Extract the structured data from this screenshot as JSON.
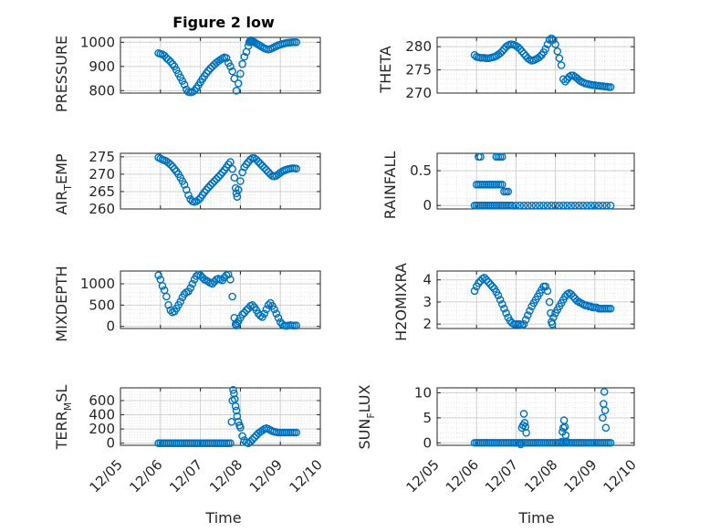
{
  "figure": {
    "title": "Figure 2 low",
    "xlabel": "Time",
    "x_tick_labels": [
      "12/05",
      "12/06",
      "12/07",
      "12/08",
      "12/09",
      "12/10"
    ],
    "marker_color": "#0072bd",
    "grid_color": "#d9d9d9",
    "axis_color": "#262626",
    "time_range": [
      "2017-12-05",
      "2017-12-10"
    ]
  },
  "chart_data": [
    {
      "type": "scatter",
      "title": "Figure 2 low",
      "ylabel": "PRESSURE",
      "ylim": [
        790,
        1020
      ],
      "yticks": [
        800,
        900,
        1000
      ],
      "grid": true,
      "x_days": [
        0.95,
        1.0,
        1.05,
        1.1,
        1.15,
        1.2,
        1.25,
        1.3,
        1.35,
        1.4,
        1.45,
        1.5,
        1.55,
        1.6,
        1.65,
        1.7,
        1.75,
        1.8,
        1.85,
        1.9,
        1.95,
        2.0,
        2.05,
        2.1,
        2.15,
        2.2,
        2.25,
        2.3,
        2.35,
        2.4,
        2.45,
        2.5,
        2.55,
        2.6,
        2.65,
        2.7,
        2.75,
        2.8,
        2.85,
        2.9,
        2.95,
        3.0,
        3.05,
        3.1,
        3.15,
        3.2,
        3.22,
        3.24,
        3.26,
        3.28,
        3.3,
        3.32,
        3.35,
        3.4,
        3.45,
        3.5,
        3.55,
        3.6,
        3.65,
        3.7,
        3.75,
        3.8,
        3.85,
        3.9,
        3.95,
        4.0,
        4.05,
        4.1,
        4.15,
        4.2,
        4.25,
        4.3,
        4.35,
        4.4
      ],
      "values": [
        955,
        952,
        950,
        945,
        935,
        928,
        920,
        910,
        900,
        885,
        870,
        855,
        840,
        825,
        805,
        795,
        793,
        795,
        800,
        810,
        822,
        835,
        848,
        860,
        872,
        882,
        892,
        900,
        908,
        916,
        922,
        928,
        933,
        938,
        935,
        915,
        900,
        880,
        850,
        800,
        830,
        870,
        910,
        940,
        960,
        985,
        1000,
        1005,
        1008,
        1008,
        1005,
        1003,
        1000,
        995,
        990,
        985,
        980,
        975,
        972,
        970,
        972,
        976,
        980,
        984,
        988,
        990,
        993,
        995,
        997,
        998,
        999,
        1000,
        1000,
        1000
      ]
    },
    {
      "type": "scatter",
      "ylabel": "THETA",
      "ylim": [
        270,
        282
      ],
      "yticks": [
        270,
        275,
        280
      ],
      "grid": true,
      "x_days": [
        0.95,
        1.0,
        1.05,
        1.1,
        1.15,
        1.2,
        1.25,
        1.3,
        1.35,
        1.4,
        1.45,
        1.5,
        1.55,
        1.6,
        1.65,
        1.7,
        1.75,
        1.8,
        1.85,
        1.9,
        1.95,
        2.0,
        2.05,
        2.1,
        2.15,
        2.2,
        2.25,
        2.3,
        2.35,
        2.4,
        2.45,
        2.5,
        2.55,
        2.6,
        2.65,
        2.7,
        2.75,
        2.8,
        2.85,
        2.9,
        2.95,
        3.0,
        3.05,
        3.1,
        3.15,
        3.2,
        3.25,
        3.3,
        3.35,
        3.4,
        3.45,
        3.5,
        3.55,
        3.6,
        3.65,
        3.7,
        3.75,
        3.8,
        3.85,
        3.9,
        3.95,
        4.0,
        4.05,
        4.1,
        4.15,
        4.2,
        4.25,
        4.3,
        4.35,
        4.4
      ],
      "values": [
        278.2,
        277.8,
        277.7,
        277.6,
        277.6,
        277.6,
        277.5,
        277.5,
        277.6,
        277.7,
        277.8,
        278.0,
        278.3,
        278.6,
        279.0,
        279.5,
        280.0,
        280.3,
        280.5,
        280.5,
        280.4,
        280.2,
        279.9,
        279.5,
        279.0,
        278.5,
        278.0,
        277.5,
        277.2,
        277.0,
        277.1,
        277.3,
        277.5,
        277.8,
        278.2,
        278.8,
        279.5,
        280.5,
        281.5,
        281.8,
        281.5,
        280.5,
        279.0,
        277.5,
        276.0,
        273.0,
        272.5,
        273.0,
        273.5,
        273.8,
        273.8,
        273.5,
        273.2,
        272.8,
        272.5,
        272.3,
        272.1,
        272.0,
        271.9,
        271.8,
        271.7,
        271.7,
        271.6,
        271.6,
        271.5,
        271.5,
        271.4,
        271.4,
        271.3,
        271.3
      ]
    },
    {
      "type": "scatter",
      "ylabel": "AIR_TEMP",
      "ylim": [
        260,
        276
      ],
      "yticks": [
        260,
        265,
        270,
        275
      ],
      "grid": true,
      "x_days": [
        0.95,
        1.0,
        1.05,
        1.1,
        1.15,
        1.2,
        1.25,
        1.3,
        1.35,
        1.4,
        1.45,
        1.5,
        1.55,
        1.6,
        1.65,
        1.7,
        1.75,
        1.8,
        1.85,
        1.9,
        1.95,
        2.0,
        2.05,
        2.1,
        2.15,
        2.2,
        2.25,
        2.3,
        2.35,
        2.4,
        2.45,
        2.5,
        2.55,
        2.6,
        2.65,
        2.7,
        2.75,
        2.8,
        2.85,
        2.88,
        2.9,
        2.92,
        2.95,
        3.0,
        3.05,
        3.1,
        3.15,
        3.2,
        3.25,
        3.3,
        3.35,
        3.4,
        3.45,
        3.5,
        3.55,
        3.6,
        3.65,
        3.7,
        3.75,
        3.8,
        3.85,
        3.9,
        3.95,
        4.0,
        4.05,
        4.1,
        4.15,
        4.2,
        4.25,
        4.3,
        4.35,
        4.4
      ],
      "values": [
        274.8,
        274.5,
        274.2,
        274.0,
        273.7,
        273.3,
        272.8,
        272.2,
        271.5,
        270.8,
        270.0,
        269.0,
        268.0,
        267.0,
        265.5,
        264.0,
        262.8,
        262.2,
        262.0,
        262.2,
        262.6,
        263.2,
        264.0,
        264.8,
        265.5,
        266.2,
        266.8,
        267.4,
        268.0,
        268.6,
        269.2,
        269.8,
        270.5,
        271.2,
        272.0,
        272.8,
        273.5,
        271.5,
        269.0,
        266.0,
        264.5,
        263.5,
        265.5,
        268.0,
        270.5,
        272.0,
        272.8,
        273.5,
        274.2,
        274.6,
        274.6,
        274.2,
        273.6,
        273.0,
        272.4,
        271.8,
        271.2,
        270.6,
        270.0,
        269.5,
        269.4,
        269.6,
        270.0,
        270.4,
        270.8,
        271.1,
        271.3,
        271.5,
        271.6,
        271.7,
        271.7,
        271.6
      ]
    },
    {
      "type": "scatter",
      "ylabel": "RAINFALL",
      "ylim": [
        -0.05,
        0.75
      ],
      "yticks": [
        0,
        0.5
      ],
      "grid": true,
      "x_days": [
        0.95,
        1.0,
        1.05,
        1.1,
        1.15,
        1.2,
        1.25,
        1.3,
        1.35,
        1.4,
        1.45,
        1.5,
        1.55,
        1.6,
        1.65,
        1.7,
        1.75,
        1.8,
        1.0,
        1.05,
        1.1,
        1.15,
        1.2,
        1.25,
        1.3,
        1.35,
        1.4,
        1.45,
        1.5,
        1.55,
        1.6,
        1.65,
        1.7,
        1.75,
        1.8,
        1.05,
        1.1,
        1.5,
        1.55,
        1.6,
        1.65,
        1.85,
        1.9,
        2.0,
        2.1,
        2.2,
        2.3,
        2.4,
        2.5,
        2.6,
        2.7,
        2.8,
        2.9,
        3.0,
        3.1,
        3.2,
        3.3,
        3.4,
        3.5,
        3.6,
        3.7,
        3.8,
        3.9,
        4.0,
        4.1,
        4.2,
        4.3,
        4.4
      ],
      "values": [
        0.0,
        0.0,
        0.0,
        0.0,
        0.0,
        0.0,
        0.0,
        0.0,
        0.0,
        0.0,
        0.0,
        0.0,
        0.0,
        0.0,
        0.0,
        0.0,
        0.0,
        0.0,
        0.3,
        0.3,
        0.3,
        0.3,
        0.3,
        0.3,
        0.3,
        0.3,
        0.3,
        0.3,
        0.3,
        0.3,
        0.3,
        0.3,
        0.2,
        0.2,
        0.2,
        0.7,
        0.7,
        0.7,
        0.7,
        0.7,
        0.7,
        0.0,
        0.0,
        0.0,
        0.0,
        0.0,
        0.0,
        0.0,
        0.0,
        0.0,
        0.0,
        0.0,
        0.0,
        0.0,
        0.0,
        0.0,
        0.0,
        0.0,
        0.0,
        0.0,
        0.0,
        0.0,
        0.0,
        0.0,
        0.0,
        0.0,
        0.0,
        0.0
      ]
    },
    {
      "type": "scatter",
      "ylabel": "MIXDEPTH",
      "ylim": [
        -50,
        1300
      ],
      "yticks": [
        0,
        500,
        1000
      ],
      "grid": true,
      "x_days": [
        0.95,
        1.0,
        1.05,
        1.1,
        1.15,
        1.2,
        1.25,
        1.3,
        1.35,
        1.4,
        1.45,
        1.5,
        1.55,
        1.6,
        1.65,
        1.7,
        1.75,
        1.8,
        1.85,
        1.9,
        1.95,
        2.0,
        2.05,
        2.1,
        2.15,
        2.2,
        2.25,
        2.3,
        2.35,
        2.4,
        2.45,
        2.5,
        2.55,
        2.6,
        2.65,
        2.7,
        2.75,
        2.8,
        2.85,
        2.88,
        2.9,
        2.92,
        2.95,
        3.0,
        3.05,
        3.1,
        3.15,
        3.2,
        3.25,
        3.3,
        3.35,
        3.4,
        3.45,
        3.5,
        3.55,
        3.6,
        3.65,
        3.7,
        3.75,
        3.8,
        3.85,
        3.9,
        3.95,
        4.0,
        4.05,
        4.1,
        4.15,
        4.2,
        4.25,
        4.3,
        4.35,
        4.4
      ],
      "values": [
        1200,
        1100,
        950,
        850,
        700,
        500,
        380,
        330,
        350,
        420,
        500,
        580,
        680,
        760,
        800,
        820,
        900,
        1000,
        1100,
        1180,
        1220,
        1200,
        1150,
        1100,
        1080,
        1050,
        1020,
        1000,
        1050,
        1100,
        1120,
        1100,
        1080,
        1150,
        1200,
        1220,
        1100,
        700,
        200,
        50,
        20,
        80,
        120,
        200,
        280,
        320,
        380,
        420,
        480,
        500,
        450,
        380,
        300,
        250,
        220,
        300,
        400,
        500,
        550,
        480,
        400,
        300,
        200,
        100,
        50,
        20,
        10,
        20,
        30,
        20,
        20,
        20
      ]
    },
    {
      "type": "scatter",
      "ylabel": "H2OMIXRA",
      "ylim": [
        1.8,
        4.4
      ],
      "yticks": [
        2,
        3,
        4
      ],
      "grid": true,
      "x_days": [
        0.95,
        1.0,
        1.05,
        1.1,
        1.15,
        1.2,
        1.25,
        1.3,
        1.35,
        1.4,
        1.45,
        1.5,
        1.55,
        1.6,
        1.65,
        1.7,
        1.75,
        1.8,
        1.85,
        1.9,
        1.95,
        2.0,
        2.05,
        2.1,
        2.15,
        2.2,
        2.25,
        2.3,
        2.35,
        2.4,
        2.45,
        2.5,
        2.55,
        2.6,
        2.65,
        2.7,
        2.75,
        2.8,
        2.85,
        2.88,
        2.9,
        2.92,
        2.95,
        3.0,
        3.05,
        3.1,
        3.15,
        3.2,
        3.25,
        3.3,
        3.35,
        3.4,
        3.45,
        3.5,
        3.55,
        3.6,
        3.65,
        3.7,
        3.75,
        3.8,
        3.85,
        3.9,
        3.95,
        4.0,
        4.05,
        4.1,
        4.15,
        4.2,
        4.25,
        4.3,
        4.35,
        4.4
      ],
      "values": [
        3.5,
        3.7,
        3.85,
        3.95,
        4.05,
        4.1,
        4.0,
        3.9,
        3.8,
        3.7,
        3.6,
        3.45,
        3.3,
        3.1,
        2.9,
        2.7,
        2.5,
        2.3,
        2.15,
        2.05,
        2.0,
        2.0,
        2.0,
        2.0,
        1.95,
        2.0,
        2.2,
        2.4,
        2.6,
        2.8,
        2.95,
        3.1,
        3.25,
        3.4,
        3.55,
        3.7,
        3.7,
        3.5,
        3.0,
        2.5,
        2.1,
        2.0,
        2.3,
        2.5,
        2.65,
        2.8,
        2.95,
        3.1,
        3.25,
        3.35,
        3.4,
        3.35,
        3.25,
        3.15,
        3.05,
        3.0,
        2.95,
        2.9,
        2.85,
        2.85,
        2.8,
        2.8,
        2.75,
        2.75,
        2.75,
        2.7,
        2.7,
        2.7,
        2.7,
        2.7,
        2.7,
        2.7
      ]
    },
    {
      "type": "scatter",
      "ylabel": "TERR_MSL",
      "ylim": [
        -30,
        780
      ],
      "yticks": [
        0,
        200,
        400,
        600
      ],
      "grid": true,
      "x_days": [
        0.95,
        1.0,
        1.05,
        1.1,
        1.15,
        1.2,
        1.25,
        1.3,
        1.35,
        1.4,
        1.45,
        1.5,
        1.55,
        1.6,
        1.65,
        1.7,
        1.75,
        1.8,
        1.85,
        1.9,
        1.95,
        2.0,
        2.05,
        2.1,
        2.15,
        2.2,
        2.25,
        2.3,
        2.35,
        2.4,
        2.45,
        2.5,
        2.55,
        2.6,
        2.65,
        2.7,
        2.75,
        2.78,
        2.8,
        2.82,
        2.84,
        2.86,
        2.88,
        2.9,
        2.92,
        2.95,
        2.98,
        3.0,
        3.05,
        3.1,
        3.15,
        3.2,
        3.25,
        3.3,
        3.35,
        3.4,
        3.45,
        3.5,
        3.55,
        3.6,
        3.65,
        3.7,
        3.75,
        3.8,
        3.85,
        3.9,
        3.95,
        4.0,
        4.05,
        4.1,
        4.15,
        4.2,
        4.25,
        4.3,
        4.35,
        4.4
      ],
      "values": [
        0,
        0,
        0,
        0,
        0,
        0,
        0,
        0,
        0,
        0,
        0,
        0,
        0,
        0,
        0,
        0,
        0,
        0,
        0,
        0,
        0,
        0,
        0,
        0,
        0,
        0,
        0,
        0,
        0,
        0,
        0,
        0,
        0,
        0,
        0,
        0,
        0,
        300,
        600,
        750,
        700,
        620,
        520,
        460,
        380,
        300,
        250,
        220,
        100,
        40,
        10,
        0,
        20,
        50,
        80,
        110,
        140,
        160,
        180,
        200,
        210,
        200,
        185,
        170,
        160,
        155,
        150,
        150,
        150,
        150,
        150,
        150,
        150,
        150,
        150,
        150
      ]
    },
    {
      "type": "scatter",
      "ylabel": "SUN_FLUX",
      "ylim": [
        -0.5,
        11
      ],
      "yticks": [
        0,
        5,
        10
      ],
      "grid": true,
      "x_days": [
        0.95,
        1.0,
        1.05,
        1.1,
        1.15,
        1.2,
        1.25,
        1.3,
        1.35,
        1.4,
        1.45,
        1.5,
        1.55,
        1.6,
        1.65,
        1.7,
        1.75,
        1.8,
        1.85,
        1.9,
        1.95,
        2.0,
        2.05,
        2.1,
        2.15,
        2.2,
        2.25,
        2.3,
        2.35,
        2.4,
        2.45,
        2.5,
        2.55,
        2.6,
        2.65,
        2.7,
        2.75,
        2.8,
        2.85,
        2.9,
        2.95,
        3.0,
        3.05,
        3.1,
        3.15,
        3.2,
        3.25,
        3.3,
        3.35,
        3.4,
        3.45,
        3.5,
        3.55,
        3.6,
        3.65,
        3.7,
        3.75,
        3.8,
        3.85,
        3.9,
        3.95,
        4.0,
        4.05,
        4.1,
        4.15,
        4.2,
        4.25,
        4.3,
        4.35,
        4.4,
        2.12,
        2.15,
        2.18,
        2.2,
        2.22,
        2.24,
        2.26,
        3.15,
        3.18,
        3.2,
        3.22,
        3.24,
        3.26,
        3.28,
        4.2,
        4.22,
        4.24,
        4.26,
        4.28
      ],
      "values": [
        0,
        0,
        0,
        0,
        0,
        0,
        0,
        0,
        0,
        0,
        0,
        0,
        0,
        0,
        0,
        0,
        0,
        0,
        0,
        0,
        0,
        0,
        0,
        0,
        0,
        0,
        0,
        0,
        0,
        0,
        0,
        0,
        0,
        0,
        0,
        0,
        0,
        0,
        0,
        0,
        0,
        0,
        0,
        0,
        0,
        0,
        0,
        0,
        0,
        0,
        0,
        0,
        0,
        0,
        0,
        0,
        0,
        0,
        0,
        0,
        0,
        0,
        0,
        0,
        0,
        0,
        0,
        0,
        0,
        0,
        -0.3,
        3.0,
        3.5,
        5.8,
        4.0,
        3.2,
        2.0,
        0.2,
        2.2,
        3.0,
        4.5,
        3.2,
        1.5,
        0.3,
        5.0,
        7.8,
        10.2,
        6.5,
        3.0
      ]
    }
  ]
}
